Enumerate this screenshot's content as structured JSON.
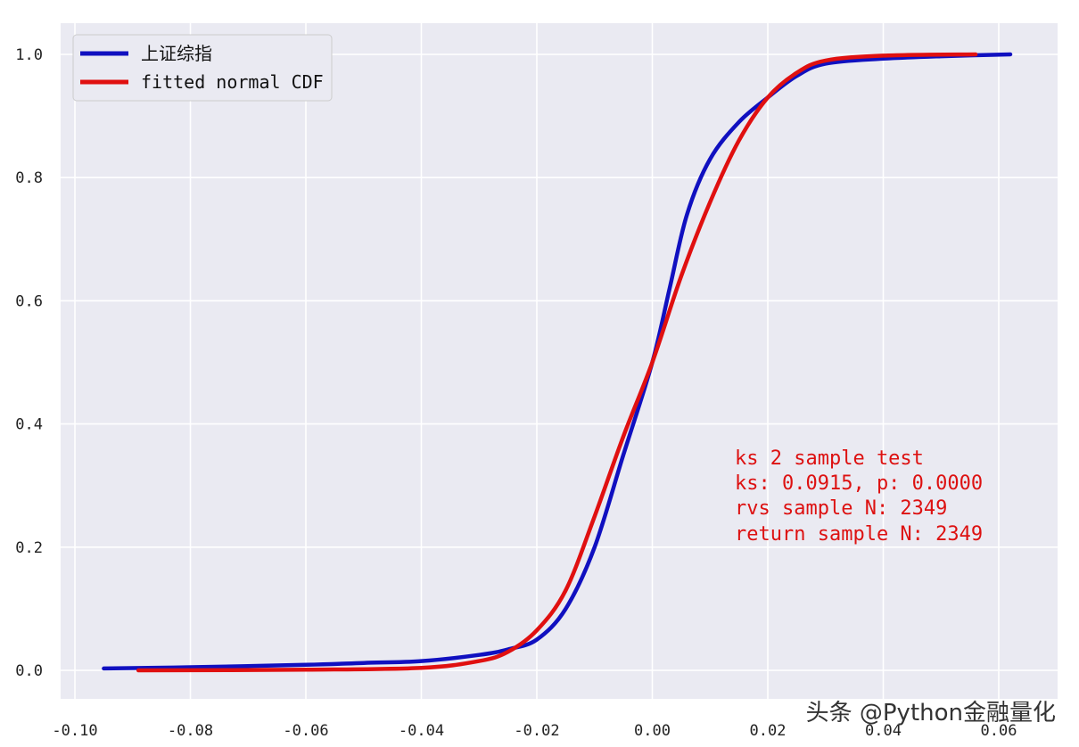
{
  "chart_data": {
    "type": "line",
    "title": "",
    "xlabel": "",
    "ylabel": "",
    "xlim": [
      -0.1,
      0.062
    ],
    "ylim": [
      0.0,
      1.0
    ],
    "x_ticks": [
      -0.1,
      -0.08,
      -0.06,
      -0.04,
      -0.02,
      0.0,
      0.02,
      0.04,
      0.06
    ],
    "x_tick_labels": [
      "-0.10",
      "-0.08",
      "-0.06",
      "-0.04",
      "-0.02",
      "0.00",
      "0.02",
      "0.04",
      "0.06"
    ],
    "y_ticks": [
      0.0,
      0.2,
      0.4,
      0.6,
      0.8,
      1.0
    ],
    "y_tick_labels": [
      "0.0",
      "0.2",
      "0.4",
      "0.6",
      "0.8",
      "1.0"
    ],
    "grid": true,
    "legend_position": "top-left",
    "series": [
      {
        "name": "上证综指",
        "color": "#1010c0",
        "points": [
          [
            -0.095,
            0.003
          ],
          [
            -0.08,
            0.005
          ],
          [
            -0.06,
            0.009
          ],
          [
            -0.05,
            0.012
          ],
          [
            -0.04,
            0.015
          ],
          [
            -0.03,
            0.025
          ],
          [
            -0.025,
            0.034
          ],
          [
            -0.02,
            0.05
          ],
          [
            -0.015,
            0.1
          ],
          [
            -0.01,
            0.2
          ],
          [
            -0.005,
            0.35
          ],
          [
            0.0,
            0.5
          ],
          [
            0.003,
            0.62
          ],
          [
            0.006,
            0.74
          ],
          [
            0.01,
            0.83
          ],
          [
            0.015,
            0.89
          ],
          [
            0.02,
            0.93
          ],
          [
            0.025,
            0.965
          ],
          [
            0.03,
            0.985
          ],
          [
            0.04,
            0.993
          ],
          [
            0.05,
            0.997
          ],
          [
            0.062,
            1.0
          ]
        ]
      },
      {
        "name": "fitted normal CDF",
        "color": "#e01010",
        "points": [
          [
            -0.089,
            0.0
          ],
          [
            -0.06,
            0.001
          ],
          [
            -0.04,
            0.004
          ],
          [
            -0.03,
            0.015
          ],
          [
            -0.025,
            0.03
          ],
          [
            -0.02,
            0.065
          ],
          [
            -0.015,
            0.13
          ],
          [
            -0.01,
            0.25
          ],
          [
            -0.005,
            0.38
          ],
          [
            0.0,
            0.5
          ],
          [
            0.005,
            0.64
          ],
          [
            0.01,
            0.76
          ],
          [
            0.015,
            0.86
          ],
          [
            0.02,
            0.93
          ],
          [
            0.025,
            0.97
          ],
          [
            0.03,
            0.99
          ],
          [
            0.04,
            0.998
          ],
          [
            0.056,
            1.0
          ]
        ]
      }
    ],
    "annotation": [
      "ks 2 sample test",
      "ks: 0.0915, p: 0.0000",
      "rvs sample N: 2349",
      "return sample N: 2349"
    ]
  },
  "watermark": "头条 @Python金融量化"
}
